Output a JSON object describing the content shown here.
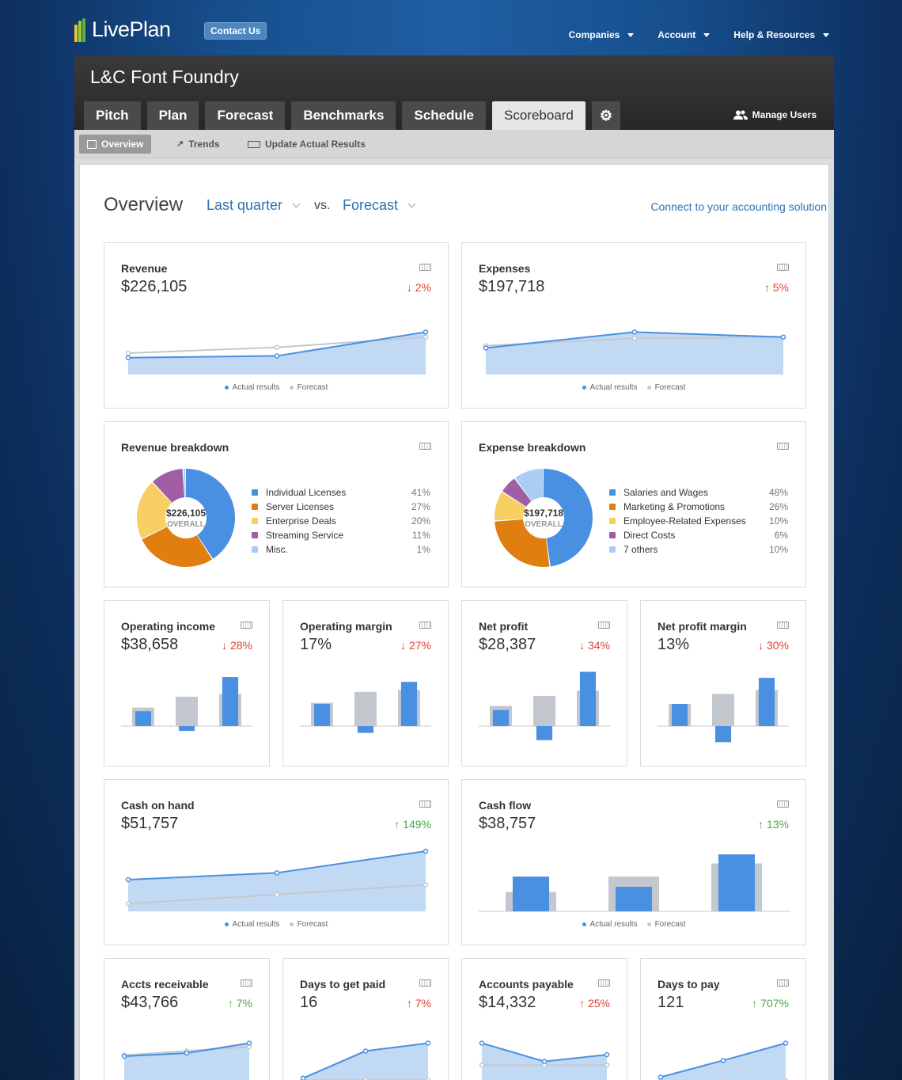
{
  "brand": {
    "logo_text": "LivePlan",
    "contact_label": "Contact Us",
    "nav": [
      "Companies",
      "Account",
      "Help & Resources"
    ]
  },
  "header": {
    "company_name": "L&C Font Foundry",
    "tabs": [
      "Pitch",
      "Plan",
      "Forecast",
      "Benchmarks",
      "Schedule",
      "Scoreboard"
    ],
    "active_tab": "Scoreboard",
    "manage_users_label": "Manage Users"
  },
  "subnav": {
    "items": [
      "Overview",
      "Trends",
      "Update Actual Results"
    ],
    "active": "Overview"
  },
  "overview": {
    "title": "Overview",
    "period": "Last quarter",
    "vs": "vs.",
    "compare": "Forecast",
    "connect_link": "Connect to your accounting solution"
  },
  "legend": {
    "actual": "Actual results",
    "forecast": "Forecast"
  },
  "colors": {
    "actual": "#4a90e2",
    "forecast": "#c3c8ce",
    "area": "#b7d2f2",
    "down": "#d9432e",
    "up_green": "#4aa64a"
  },
  "cards": {
    "revenue": {
      "title": "Revenue",
      "value": "$226,105",
      "delta": "↓ 2%"
    },
    "expenses": {
      "title": "Expenses",
      "value": "$197,718",
      "delta": "↑ 5%"
    },
    "operating_income": {
      "title": "Operating income",
      "value": "$38,658",
      "delta": "↓ 28%"
    },
    "operating_margin": {
      "title": "Operating margin",
      "value": "17%",
      "delta": "↓ 27%"
    },
    "net_profit": {
      "title": "Net profit",
      "value": "$28,387",
      "delta": "↓ 34%"
    },
    "net_profit_margin": {
      "title": "Net profit margin",
      "value": "13%",
      "delta": "↓ 30%"
    },
    "cash_on_hand": {
      "title": "Cash on hand",
      "value": "$51,757",
      "delta": "↑ 149%"
    },
    "cash_flow": {
      "title": "Cash flow",
      "value": "$38,757",
      "delta": "↑ 13%"
    },
    "accts_receivable": {
      "title": "Accts receivable",
      "value": "$43,766",
      "delta": "↑ 7%"
    },
    "days_to_get_paid": {
      "title": "Days to get paid",
      "value": "16",
      "delta": "↑ 7%"
    },
    "accounts_payable": {
      "title": "Accounts payable",
      "value": "$14,332",
      "delta": "↑ 25%"
    },
    "days_to_pay": {
      "title": "Days to pay",
      "value": "121",
      "delta": "↑ 707%"
    }
  },
  "revenue_breakdown": {
    "title": "Revenue breakdown",
    "total": "$226,105",
    "overall_label": "OVERALL",
    "items": [
      {
        "label": "Individual Licenses",
        "pct": "41%",
        "value": 41,
        "color": "#4a90e2"
      },
      {
        "label": "Server Licenses",
        "pct": "27%",
        "value": 27,
        "color": "#e07f10"
      },
      {
        "label": "Enterprise Deals",
        "pct": "20%",
        "value": 20,
        "color": "#f7cf63"
      },
      {
        "label": "Streaming Service",
        "pct": "11%",
        "value": 11,
        "color": "#a05fa4"
      },
      {
        "label": "Misc.",
        "pct": "1%",
        "value": 1,
        "color": "#a9cdf5"
      }
    ]
  },
  "expense_breakdown": {
    "title": "Expense breakdown",
    "total": "$197,718",
    "overall_label": "OVERALL",
    "items": [
      {
        "label": "Salaries and Wages",
        "pct": "48%",
        "value": 48,
        "color": "#4a90e2"
      },
      {
        "label": "Marketing & Promotions",
        "pct": "26%",
        "value": 26,
        "color": "#e07f10"
      },
      {
        "label": "Employee-Related Expenses",
        "pct": "10%",
        "value": 10,
        "color": "#f7cf63"
      },
      {
        "label": "Direct Costs",
        "pct": "6%",
        "value": 6,
        "color": "#a05fa4"
      },
      {
        "label": "7 others",
        "pct": "10%",
        "value": 10,
        "color": "#a9cdf5"
      }
    ]
  },
  "chart_data": [
    {
      "id": "revenue",
      "type": "area",
      "series": [
        {
          "name": "Actual results",
          "values": [
            0.24,
            0.27,
            0.69
          ]
        },
        {
          "name": "Forecast",
          "values": [
            0.32,
            0.42,
            0.6
          ]
        }
      ]
    },
    {
      "id": "expenses",
      "type": "area",
      "series": [
        {
          "name": "Actual results",
          "values": [
            0.41,
            0.69,
            0.6
          ]
        },
        {
          "name": "Forecast",
          "values": [
            0.45,
            0.58,
            0.6
          ]
        }
      ]
    },
    {
      "id": "operating_income",
      "type": "bar",
      "series": [
        {
          "name": "Actual results",
          "values": [
            0.37,
            -0.12,
            1.22
          ]
        },
        {
          "name": "Forecast",
          "values": [
            0.46,
            0.73,
            0.8
          ]
        }
      ]
    },
    {
      "id": "operating_margin",
      "type": "bar",
      "series": [
        {
          "name": "Actual results",
          "values": [
            0.55,
            -0.17,
            1.1
          ]
        },
        {
          "name": "Forecast",
          "values": [
            0.58,
            0.85,
            0.9
          ]
        }
      ]
    },
    {
      "id": "net_profit",
      "type": "bar",
      "series": [
        {
          "name": "Actual results",
          "values": [
            0.4,
            -0.35,
            1.35
          ]
        },
        {
          "name": "Forecast",
          "values": [
            0.5,
            0.75,
            0.88
          ]
        }
      ]
    },
    {
      "id": "net_profit_margin",
      "type": "bar",
      "series": [
        {
          "name": "Actual results",
          "values": [
            0.55,
            -0.4,
            1.2
          ]
        },
        {
          "name": "Forecast",
          "values": [
            0.55,
            0.8,
            0.9
          ]
        }
      ]
    },
    {
      "id": "cash_on_hand",
      "type": "area",
      "series": [
        {
          "name": "Actual results",
          "values": [
            0.5,
            0.62,
            1.0
          ]
        },
        {
          "name": "Forecast",
          "values": [
            0.08,
            0.24,
            0.41
          ]
        }
      ]
    },
    {
      "id": "cash_flow",
      "type": "bar",
      "series": [
        {
          "name": "Actual results",
          "values": [
            0.61,
            0.43,
            1.0
          ]
        },
        {
          "name": "Forecast",
          "values": [
            0.34,
            0.61,
            0.84
          ]
        }
      ]
    },
    {
      "id": "accts_receivable",
      "type": "area",
      "series": [
        {
          "name": "Actual results",
          "values": [
            0.5,
            0.56,
            0.75
          ]
        },
        {
          "name": "Forecast",
          "values": [
            0.52,
            0.6,
            0.68
          ]
        }
      ]
    },
    {
      "id": "days_to_get_paid",
      "type": "area",
      "series": [
        {
          "name": "Actual results",
          "values": [
            0.08,
            0.6,
            0.75
          ]
        },
        {
          "name": "Forecast",
          "values": [
            0.04,
            0.04,
            0.04
          ]
        }
      ]
    },
    {
      "id": "accounts_payable",
      "type": "area",
      "series": [
        {
          "name": "Actual results",
          "values": [
            0.75,
            0.4,
            0.53
          ]
        },
        {
          "name": "Forecast",
          "values": [
            0.33,
            0.33,
            0.33
          ]
        }
      ]
    },
    {
      "id": "days_to_pay",
      "type": "area",
      "series": [
        {
          "name": "Actual results",
          "values": [
            0.1,
            0.42,
            0.75
          ]
        },
        {
          "name": "Forecast",
          "values": [
            0.03,
            0.03,
            0.03
          ]
        }
      ]
    }
  ]
}
